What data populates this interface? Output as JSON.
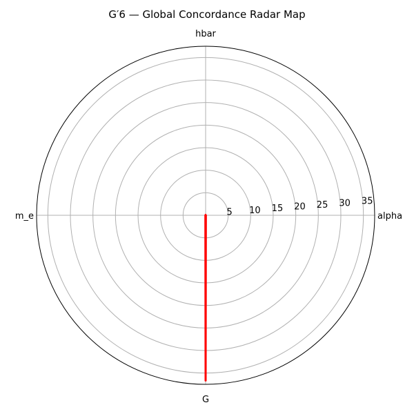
{
  "chart_data": {
    "type": "radar",
    "title": "G′6 — Global Concordance Radar Map",
    "axes": [
      "alpha",
      "hbar",
      "m_e",
      "G"
    ],
    "radial_ticks": [
      5,
      10,
      15,
      20,
      25,
      30,
      35
    ],
    "rlim": [
      0,
      37.5
    ],
    "grid": true,
    "series": [
      {
        "values": [
          0.05,
          0.05,
          0.05,
          36.8
        ],
        "color": "#ff0000"
      }
    ]
  }
}
